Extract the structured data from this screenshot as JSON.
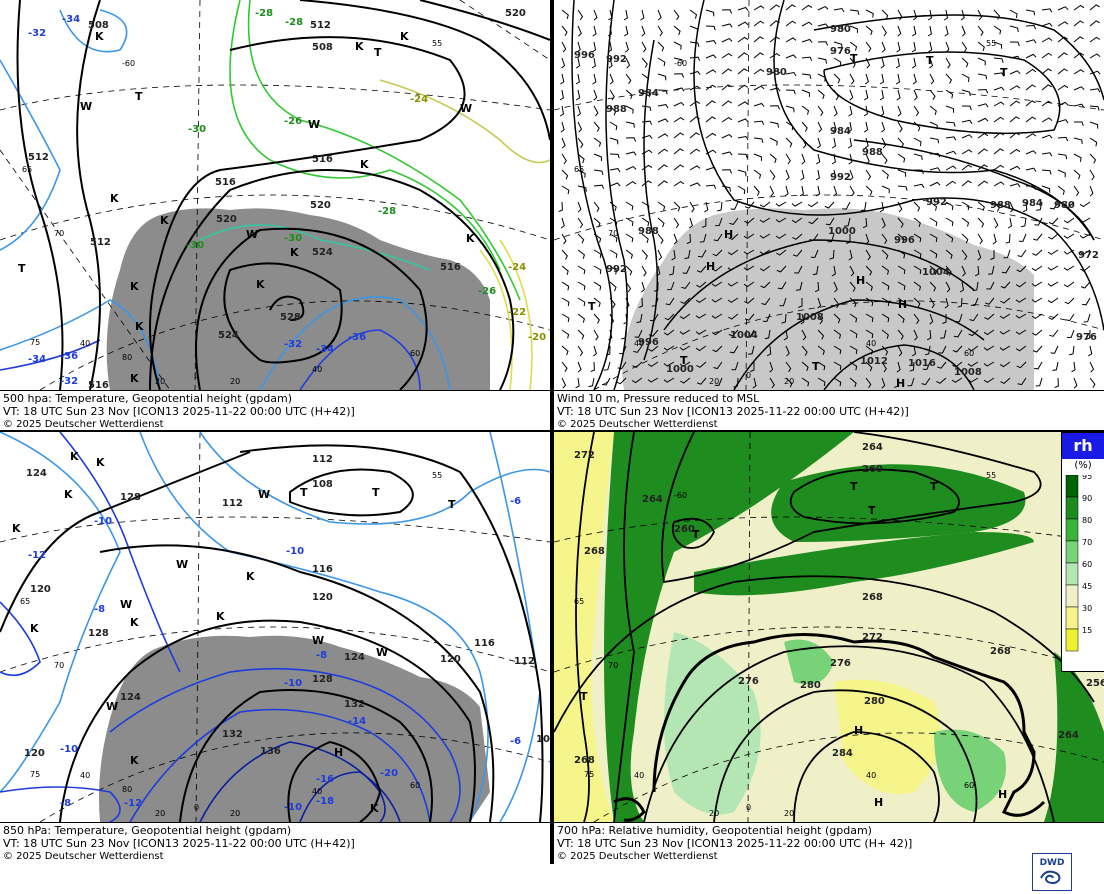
{
  "panels": {
    "tl": {
      "title": "500 hpa: Temperature, Geopotential height (gpdam)",
      "vt": "VT: 18 UTC Sun  23 Nov [ICON13 2025-11-22 00:00 UTC  (H+42)]",
      "copyright": "© 2025 Deutscher Wetterdienst",
      "height_labels": [
        "508",
        "512",
        "508",
        "516",
        "516",
        "520",
        "520",
        "524",
        "528",
        "524",
        "512",
        "512",
        "516",
        "520",
        "516"
      ],
      "temp_labels": [
        "-34",
        "-32",
        "-28",
        "-28",
        "-30",
        "-26",
        "-24",
        "-28",
        "-30",
        "-30",
        "-32",
        "-34",
        "-36",
        "-36",
        "-34",
        "-32",
        "-24",
        "-22",
        "-20",
        "-26"
      ],
      "highs_lows": [
        "K",
        "K",
        "T",
        "T",
        "W",
        "W",
        "K",
        "K",
        "K",
        "W",
        "K",
        "K",
        "K",
        "K",
        "T",
        "K",
        "K",
        "W",
        "K"
      ],
      "grid_labels": [
        "-60",
        "55",
        "65",
        "70",
        "75",
        "80",
        "40",
        "20",
        "0",
        "20",
        "40",
        "60"
      ]
    },
    "tr": {
      "title": "Wind 10 m, Pressure reduced to MSL",
      "vt": "VT: 18 UTC Sun  23 Nov [ICON13 2025-11-22 00:00 UTC  (H+42)]",
      "copyright": "© 2025 Deutscher Wetterdienst",
      "isobar_labels": [
        "980",
        "976",
        "996",
        "992",
        "984",
        "988",
        "980",
        "984",
        "988",
        "992",
        "992",
        "988",
        "984",
        "980",
        "988",
        "1000",
        "996",
        "1004",
        "992",
        "972",
        "1008",
        "996",
        "1000",
        "1004",
        "1012",
        "1016",
        "1008",
        "976"
      ],
      "highs_lows": [
        "T",
        "T",
        "T",
        "H",
        "H",
        "H",
        "H",
        "T",
        "T",
        "T",
        "H"
      ],
      "grid_labels": [
        "-60",
        "55",
        "65",
        "70",
        "40",
        "20",
        "0",
        "20",
        "40",
        "60"
      ]
    },
    "bl": {
      "title": "850 hPa:  Temperature, Geopotential height (gpdam)",
      "vt": "VT: 18 UTC Sun  23 Nov [ICON13 2025-11-22 00:00 UTC  (H+42)]",
      "copyright": "© 2025 Deutscher Wetterdienst",
      "height_labels": [
        "124",
        "112",
        "108",
        "128",
        "112",
        "116",
        "120",
        "120",
        "116",
        "112",
        "128",
        "124",
        "128",
        "124",
        "132",
        "136",
        "132",
        "108",
        "120",
        "120"
      ],
      "temp_labels": [
        "-10",
        "-12",
        "-8",
        "-10",
        "-6",
        "-8",
        "-10",
        "-12",
        "-10",
        "-14",
        "-16",
        "-18",
        "-20",
        "-8",
        "-6",
        "-10"
      ],
      "highs_lows": [
        "K",
        "K",
        "K",
        "K",
        "T",
        "T",
        "T",
        "W",
        "W",
        "K",
        "K",
        "W",
        "W",
        "K",
        "K",
        "W",
        "H",
        "W",
        "K",
        "K"
      ],
      "grid_labels": [
        "55",
        "65",
        "70",
        "75",
        "80",
        "40",
        "20",
        "0",
        "20",
        "40",
        "60"
      ]
    },
    "br": {
      "title": "700 hPa:  Relative humidity, Geopotential height (gpdam)",
      "vt": "VT: 18 UTC Sun  23 Nov [ICON13 2025-11-22 00:00 UTC  (H+ 42)]",
      "copyright": "© 2025 Deutscher Wetterdienst",
      "height_labels": [
        "272",
        "264",
        "260",
        "264",
        "268",
        "260",
        "268",
        "272",
        "276",
        "276",
        "280",
        "280",
        "284",
        "268",
        "264",
        "256",
        "268"
      ],
      "highs_lows": [
        "T",
        "T",
        "T",
        "T",
        "H",
        "H",
        "H",
        "T"
      ],
      "grid_labels": [
        "-60",
        "55",
        "65",
        "70",
        "75",
        "40",
        "20",
        "0",
        "20",
        "40",
        "60"
      ],
      "legend": {
        "title": "rh",
        "unit": "(%)",
        "levels": [
          "95",
          "90",
          "80",
          "70",
          "60",
          "45",
          "30",
          "15"
        ],
        "colors": [
          "#006400",
          "#1e8c1e",
          "#3cb43c",
          "#78d278",
          "#b4e6b4",
          "#f0f0c8",
          "#f5f58c",
          "#f0f032"
        ]
      },
      "logo": "DWD"
    }
  },
  "colors": {
    "height_contour": "#000000",
    "temp_contour_cold": "#1e3cdc",
    "temp_contour_mid": "#3c96e6",
    "temp_contour_warm": "#32c832",
    "temp_contour_yellow": "#dcdc50",
    "terrain_gray": "#8c8c8c",
    "terrain_light": "#c8c8c8"
  }
}
